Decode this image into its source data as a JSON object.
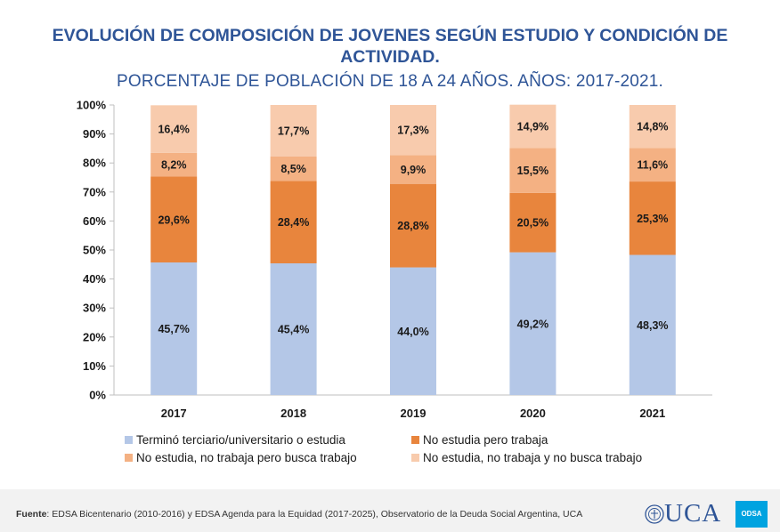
{
  "title": "EVOLUCIÓN DE COMPOSICIÓN DE JOVENES SEGÚN ESTUDIO Y CONDICIÓN DE ACTIVIDAD.",
  "subtitle": "PORCENTAJE DE POBLACIÓN DE 18 A 24 AÑOS. AÑOS: 2017-2021.",
  "footer": {
    "label": "Fuente",
    "text": ": EDSA Bicentenario (2010-2016) y EDSA Agenda para la Equidad (2017-2025), Observatorio de la Deuda Social Argentina, UCA"
  },
  "logo": {
    "text": "UCA",
    "badge": "ODSA"
  },
  "chart_data": {
    "type": "bar",
    "stacked": true,
    "categories": [
      "2017",
      "2018",
      "2019",
      "2020",
      "2021"
    ],
    "ylim": [
      0,
      100
    ],
    "yticks": [
      "0%",
      "10%",
      "20%",
      "30%",
      "40%",
      "50%",
      "60%",
      "70%",
      "80%",
      "90%",
      "100%"
    ],
    "grid": false,
    "legend_position": "bottom",
    "series": [
      {
        "name": "Terminó terciario/universitario o estudia",
        "color": "#b4c7e7",
        "values": [
          45.7,
          45.4,
          44.0,
          49.2,
          48.3
        ],
        "labels": [
          "45,7%",
          "45,4%",
          "44,0%",
          "49,2%",
          "48,3%"
        ]
      },
      {
        "name": "No estudia pero trabaja",
        "color": "#e8853d",
        "values": [
          29.6,
          28.4,
          28.8,
          20.5,
          25.3
        ],
        "labels": [
          "29,6%",
          "28,4%",
          "28,8%",
          "20,5%",
          "25,3%"
        ]
      },
      {
        "name": "No estudia, no trabaja pero busca trabajo",
        "color": "#f4b183",
        "values": [
          8.2,
          8.5,
          9.9,
          15.5,
          11.6
        ],
        "labels": [
          "8,2%",
          "8,5%",
          "9,9%",
          "15,5%",
          "11,6%"
        ]
      },
      {
        "name": "No estudia, no trabaja y no busca trabajo",
        "color": "#f8cbad",
        "values": [
          16.4,
          17.7,
          17.3,
          14.9,
          14.8
        ],
        "labels": [
          "16,4%",
          "17,7%",
          "17,3%",
          "14,9%",
          "14,8%"
        ]
      }
    ]
  }
}
